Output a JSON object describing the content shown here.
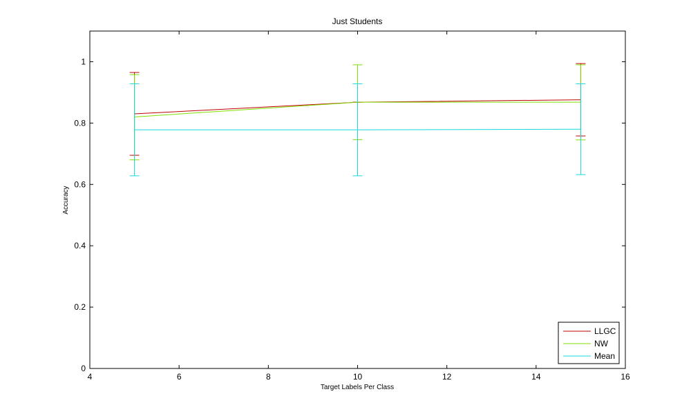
{
  "chart_data": {
    "type": "line",
    "title": "Just Students",
    "xlabel": "Target Labels Per Class",
    "ylabel": "Accuracy",
    "xlim": [
      4,
      16
    ],
    "ylim": [
      0,
      1.1
    ],
    "xticks": [
      "4",
      "6",
      "8",
      "10",
      "12",
      "14",
      "16"
    ],
    "yticks": [
      "0",
      "0.2",
      "0.4",
      "0.6",
      "0.8",
      "1"
    ],
    "grid": false,
    "legend_position": "bottom-right",
    "x": [
      5,
      10,
      15
    ],
    "series": [
      {
        "name": "LLGC",
        "color": "#c00000",
        "values": [
          0.83,
          0.868,
          0.876
        ],
        "lower": [
          0.695,
          0.868,
          0.758
        ],
        "upper": [
          0.965,
          0.868,
          0.994
        ]
      },
      {
        "name": "NW",
        "color": "#7fdf00",
        "values": [
          0.82,
          0.868,
          0.868
        ],
        "lower": [
          0.68,
          0.746,
          0.745
        ],
        "upper": [
          0.958,
          0.99,
          0.99
        ]
      },
      {
        "name": "Mean",
        "color": "#17d7dd",
        "values": [
          0.778,
          0.778,
          0.78
        ],
        "lower": [
          0.628,
          0.628,
          0.632
        ],
        "upper": [
          0.928,
          0.928,
          0.928
        ]
      }
    ]
  }
}
